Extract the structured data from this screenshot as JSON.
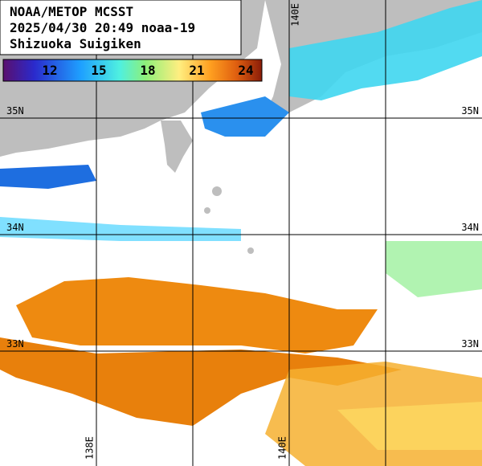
{
  "header": {
    "lines": [
      "NOAA/METOP MCSST",
      "2025/04/30 20:49 noaa-19",
      "Shizuoka Suigiken"
    ]
  },
  "colorbar": {
    "labels": [
      "12",
      "15",
      "18",
      "21",
      "24"
    ]
  },
  "grid": {
    "lat_labels": [
      "35N",
      "34N",
      "33N"
    ],
    "lon_top_label": "140E",
    "lon_bottom_labels": [
      "138E",
      "140E"
    ]
  }
}
